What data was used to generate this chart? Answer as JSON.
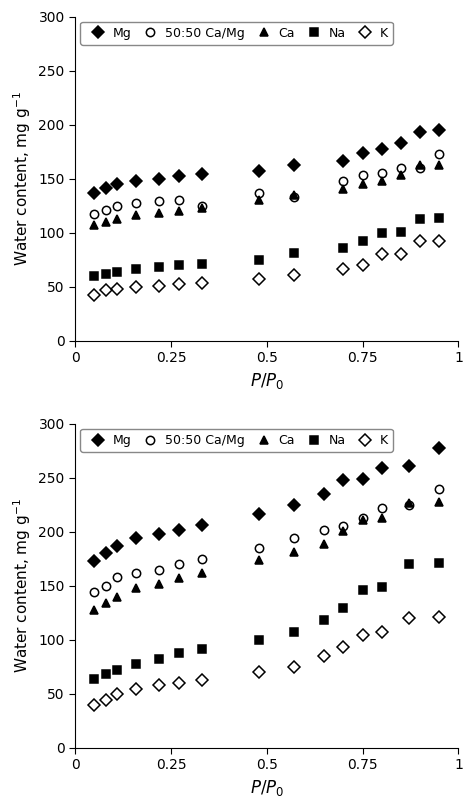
{
  "top_chart": {
    "Mg": {
      "x": [
        0.05,
        0.08,
        0.11,
        0.16,
        0.22,
        0.27,
        0.33,
        0.48,
        0.57,
        0.7,
        0.75,
        0.8,
        0.85,
        0.9,
        0.95
      ],
      "y": [
        137,
        141,
        145,
        148,
        150,
        152,
        154,
        157,
        163,
        166,
        174,
        177,
        183,
        193,
        195
      ]
    },
    "CaMg": {
      "x": [
        0.05,
        0.08,
        0.11,
        0.16,
        0.22,
        0.27,
        0.33,
        0.48,
        0.57,
        0.7,
        0.75,
        0.8,
        0.85,
        0.9,
        0.95
      ],
      "y": [
        117,
        121,
        125,
        127,
        129,
        130,
        125,
        137,
        133,
        148,
        153,
        155,
        160,
        160,
        173
      ]
    },
    "Ca": {
      "x": [
        0.05,
        0.08,
        0.11,
        0.16,
        0.22,
        0.27,
        0.33,
        0.48,
        0.57,
        0.7,
        0.75,
        0.8,
        0.85,
        0.9,
        0.95
      ],
      "y": [
        107,
        110,
        113,
        116,
        118,
        120,
        123,
        130,
        135,
        140,
        145,
        148,
        153,
        163,
        163
      ]
    },
    "Na": {
      "x": [
        0.05,
        0.08,
        0.11,
        0.16,
        0.22,
        0.27,
        0.33,
        0.48,
        0.57,
        0.7,
        0.75,
        0.8,
        0.85,
        0.9,
        0.95
      ],
      "y": [
        60,
        62,
        64,
        66,
        68,
        70,
        71,
        75,
        81,
        86,
        92,
        100,
        101,
        113,
        114
      ]
    },
    "K": {
      "x": [
        0.05,
        0.08,
        0.11,
        0.16,
        0.22,
        0.27,
        0.33,
        0.48,
        0.57,
        0.7,
        0.75,
        0.8,
        0.85,
        0.9,
        0.95
      ],
      "y": [
        42,
        47,
        48,
        50,
        51,
        52,
        53,
        57,
        61,
        66,
        70,
        80,
        80,
        92,
        92
      ]
    }
  },
  "bottom_chart": {
    "Mg": {
      "x": [
        0.05,
        0.08,
        0.11,
        0.16,
        0.22,
        0.27,
        0.33,
        0.48,
        0.57,
        0.65,
        0.7,
        0.75,
        0.8,
        0.87,
        0.95
      ],
      "y": [
        173,
        180,
        187,
        194,
        198,
        202,
        206,
        217,
        225,
        235,
        248,
        249,
        259,
        261,
        278
      ]
    },
    "CaMg": {
      "x": [
        0.05,
        0.08,
        0.11,
        0.16,
        0.22,
        0.27,
        0.33,
        0.48,
        0.57,
        0.65,
        0.7,
        0.75,
        0.8,
        0.87,
        0.95
      ],
      "y": [
        144,
        150,
        158,
        162,
        165,
        170,
        175,
        185,
        194,
        202,
        205,
        213,
        222,
        225,
        240
      ]
    },
    "Ca": {
      "x": [
        0.05,
        0.08,
        0.11,
        0.16,
        0.22,
        0.27,
        0.33,
        0.48,
        0.57,
        0.65,
        0.7,
        0.75,
        0.8,
        0.87,
        0.95
      ],
      "y": [
        128,
        134,
        140,
        148,
        152,
        157,
        162,
        174,
        181,
        189,
        201,
        211,
        213,
        227,
        228
      ]
    },
    "Na": {
      "x": [
        0.05,
        0.08,
        0.11,
        0.16,
        0.22,
        0.27,
        0.33,
        0.48,
        0.57,
        0.65,
        0.7,
        0.75,
        0.8,
        0.87,
        0.95
      ],
      "y": [
        64,
        68,
        72,
        78,
        82,
        88,
        92,
        100,
        107,
        118,
        130,
        146,
        149,
        170,
        171
      ]
    },
    "K": {
      "x": [
        0.05,
        0.08,
        0.11,
        0.16,
        0.22,
        0.27,
        0.33,
        0.48,
        0.57,
        0.65,
        0.7,
        0.75,
        0.8,
        0.87,
        0.95
      ],
      "y": [
        40,
        44,
        50,
        55,
        58,
        60,
        63,
        70,
        75,
        85,
        93,
        105,
        107,
        120,
        121
      ]
    }
  },
  "ylabel": "Water content, mg g⁻¹",
  "xlabel": "P/P₀",
  "ylim": [
    0,
    300
  ],
  "xlim": [
    0,
    1.0
  ],
  "yticks": [
    0,
    50,
    100,
    150,
    200,
    250,
    300
  ],
  "xticks": [
    0,
    0.25,
    0.5,
    0.75,
    1.0
  ],
  "xtick_labels": [
    "0",
    "0.25",
    "0.5",
    "0.75",
    "1"
  ],
  "series_styles": {
    "Mg": {
      "marker": "D",
      "filled": true,
      "color": "#000000",
      "label": "Mg"
    },
    "CaMg": {
      "marker": "o",
      "filled": false,
      "color": "#000000",
      "label": "50:50 Ca/Mg"
    },
    "Ca": {
      "marker": "^",
      "filled": true,
      "color": "#000000",
      "label": "Ca"
    },
    "Na": {
      "marker": "s",
      "filled": true,
      "color": "#000000",
      "label": "Na"
    },
    "K": {
      "marker": "D",
      "filled": false,
      "color": "#000000",
      "label": "K"
    }
  },
  "bg_color": "#ffffff",
  "text_color": "#000000",
  "tick_fontsize": 10,
  "label_fontsize": 11,
  "markersize": 6,
  "legend_fontsize": 9
}
